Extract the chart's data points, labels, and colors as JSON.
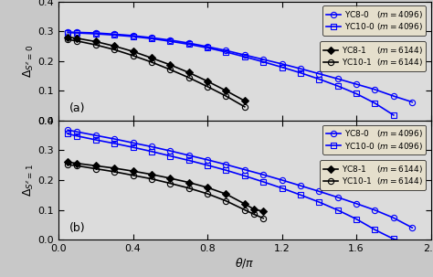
{
  "panel_a": {
    "YC8_0": {
      "x": [
        0.05,
        0.1,
        0.2,
        0.3,
        0.4,
        0.5,
        0.6,
        0.7,
        0.8,
        0.9,
        1.0,
        1.1,
        1.2,
        1.3,
        1.4,
        1.5,
        1.6,
        1.7,
        1.8,
        1.9
      ],
      "y": [
        0.297,
        0.296,
        0.294,
        0.29,
        0.285,
        0.278,
        0.27,
        0.26,
        0.248,
        0.235,
        0.22,
        0.205,
        0.19,
        0.174,
        0.157,
        0.14,
        0.122,
        0.104,
        0.082,
        0.062
      ],
      "color": "blue",
      "marker": "o",
      "label": "YC8-0   ($m = 4096$)",
      "ms": 4.5,
      "lw": 1.2,
      "mfc": "none",
      "mec": "blue"
    },
    "YC10_0": {
      "x": [
        0.05,
        0.1,
        0.2,
        0.3,
        0.4,
        0.5,
        0.6,
        0.7,
        0.8,
        0.9,
        1.0,
        1.1,
        1.2,
        1.3,
        1.4,
        1.5,
        1.6,
        1.7,
        1.8
      ],
      "y": [
        0.295,
        0.294,
        0.291,
        0.287,
        0.282,
        0.275,
        0.266,
        0.256,
        0.244,
        0.23,
        0.214,
        0.197,
        0.179,
        0.16,
        0.139,
        0.116,
        0.09,
        0.058,
        0.018
      ],
      "color": "blue",
      "marker": "s",
      "label": "YC10-0 ($m = 4096$)",
      "ms": 4.5,
      "lw": 1.2,
      "mfc": "none",
      "mec": "blue"
    },
    "YC8_1": {
      "x": [
        0.05,
        0.1,
        0.2,
        0.3,
        0.4,
        0.5,
        0.6,
        0.7,
        0.8,
        0.9,
        1.0
      ],
      "y": [
        0.28,
        0.276,
        0.265,
        0.25,
        0.232,
        0.21,
        0.187,
        0.161,
        0.132,
        0.1,
        0.066
      ],
      "color": "black",
      "marker": "D",
      "label": "YC8-1    ($m = 6144$)",
      "ms": 4.5,
      "lw": 1.2,
      "mfc": "black",
      "mec": "black"
    },
    "YC10_1": {
      "x": [
        0.05,
        0.1,
        0.2,
        0.3,
        0.4,
        0.5,
        0.6,
        0.7,
        0.8,
        0.9,
        1.0
      ],
      "y": [
        0.272,
        0.267,
        0.254,
        0.238,
        0.218,
        0.196,
        0.171,
        0.144,
        0.114,
        0.082,
        0.046
      ],
      "color": "black",
      "marker": "o",
      "label": "YC10-1  ($m = 6144$)",
      "ms": 4.5,
      "lw": 1.2,
      "mfc": "none",
      "mec": "black"
    }
  },
  "panel_b": {
    "YC8_0": {
      "x": [
        0.05,
        0.1,
        0.2,
        0.3,
        0.4,
        0.5,
        0.6,
        0.7,
        0.8,
        0.9,
        1.0,
        1.1,
        1.2,
        1.3,
        1.4,
        1.5,
        1.6,
        1.7,
        1.8,
        1.9
      ],
      "y": [
        0.368,
        0.362,
        0.35,
        0.338,
        0.325,
        0.312,
        0.298,
        0.283,
        0.268,
        0.252,
        0.235,
        0.218,
        0.2,
        0.181,
        0.162,
        0.142,
        0.121,
        0.099,
        0.073,
        0.04
      ],
      "color": "blue",
      "marker": "o",
      "label": "YC8-0   ($m = 4096$)",
      "ms": 4.5,
      "lw": 1.2,
      "mfc": "none",
      "mec": "blue"
    },
    "YC10_0": {
      "x": [
        0.05,
        0.1,
        0.2,
        0.3,
        0.4,
        0.5,
        0.6,
        0.7,
        0.8,
        0.9,
        1.0,
        1.1,
        1.2,
        1.3,
        1.4,
        1.5,
        1.6,
        1.7,
        1.8,
        1.9
      ],
      "y": [
        0.355,
        0.348,
        0.335,
        0.323,
        0.31,
        0.296,
        0.281,
        0.266,
        0.25,
        0.233,
        0.214,
        0.194,
        0.173,
        0.15,
        0.126,
        0.099,
        0.069,
        0.033,
        0.002,
        -0.015
      ],
      "color": "blue",
      "marker": "s",
      "label": "YC10-0 ($m = 4096$)",
      "ms": 4.5,
      "lw": 1.2,
      "mfc": "none",
      "mec": "blue"
    },
    "YC8_1": {
      "x": [
        0.05,
        0.1,
        0.2,
        0.3,
        0.4,
        0.5,
        0.6,
        0.7,
        0.8,
        0.9,
        1.0,
        1.05,
        1.1
      ],
      "y": [
        0.26,
        0.256,
        0.248,
        0.24,
        0.23,
        0.219,
        0.206,
        0.192,
        0.175,
        0.153,
        0.12,
        0.102,
        0.095
      ],
      "color": "black",
      "marker": "D",
      "label": "YC8-1    ($m = 6144$)",
      "ms": 4.5,
      "lw": 1.2,
      "mfc": "black",
      "mec": "black"
    },
    "YC10_1": {
      "x": [
        0.05,
        0.1,
        0.2,
        0.3,
        0.4,
        0.5,
        0.6,
        0.7,
        0.8,
        0.9,
        1.0,
        1.05,
        1.1
      ],
      "y": [
        0.252,
        0.248,
        0.238,
        0.228,
        0.216,
        0.204,
        0.189,
        0.173,
        0.154,
        0.13,
        0.1,
        0.085,
        0.072
      ],
      "color": "black",
      "marker": "o",
      "label": "YC10-1  ($m = 6144$)",
      "ms": 4.5,
      "lw": 1.2,
      "mfc": "none",
      "mec": "black"
    }
  },
  "xlim": [
    0,
    2
  ],
  "ylim": [
    0,
    0.4
  ],
  "xticks": [
    0,
    0.4,
    0.8,
    1.2,
    1.6,
    2.0
  ],
  "yticks": [
    0,
    0.1,
    0.2,
    0.3,
    0.4
  ],
  "xlabel": "$\\theta/\\pi$",
  "ylabel_a": "$\\Delta_{S^z=0}$",
  "ylabel_b": "$\\Delta_{S^z=1}$",
  "label_a": "(a)",
  "label_b": "(b)",
  "bg_color": "#dcdcdc",
  "fig_bg_color": "#c8c8c8",
  "legend_fc": "#e8e0c8"
}
